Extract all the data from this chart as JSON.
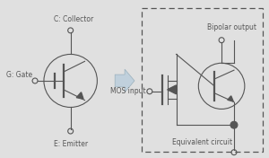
{
  "bg_color": "#e0e0e0",
  "line_color": "#555555",
  "arrow_color": "#c0d0dc",
  "arrow_edge": "#9ab0bc",
  "labels": {
    "collector": "C: Collector",
    "gate": "G: Gate",
    "emitter": "E: Emitter",
    "bipolar_output": "Bipolar output",
    "mos_input": "MOS input",
    "equivalent": "Equivalent circuit"
  },
  "fontsize_main": 6.0,
  "fontsize_small": 5.5
}
